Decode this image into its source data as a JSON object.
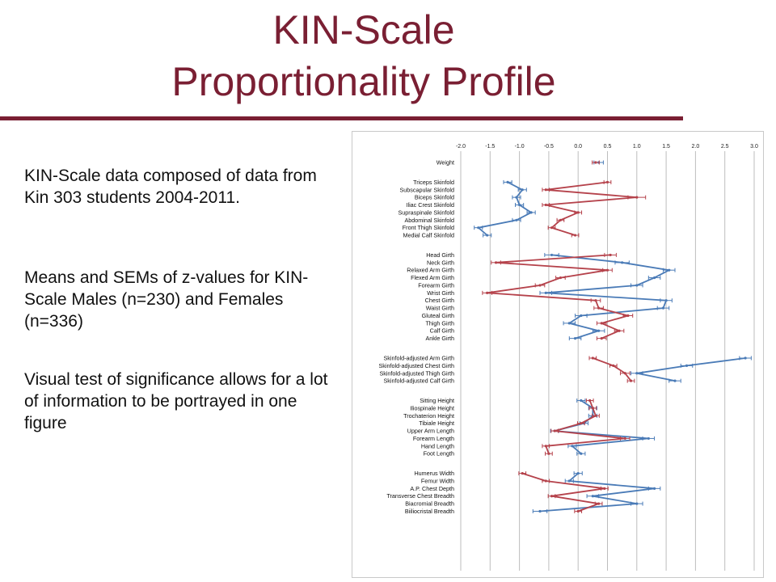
{
  "slide": {
    "title_line1": "KIN-Scale",
    "title_line2": "Proportionality Profile",
    "paragraph1": "KIN-Scale data composed of data from Kin 303 students 2004-2011.",
    "paragraph2": "Means and SEMs of z-values for KIN-Scale Males (n=230) and Females (n=336)",
    "paragraph3": "Visual test of significance allows for a lot of information to be portrayed in one figure",
    "title_color": "#7a1f33"
  },
  "chart_data": {
    "type": "line",
    "orientation": "horizontal",
    "title": "",
    "xlabel": "",
    "ylabel": "",
    "xlim": [
      -2.0,
      3.0
    ],
    "xticks": [
      "-2.0",
      "-1.5",
      "-1.0",
      "-0.5",
      "0.0",
      "0.5",
      "1.0",
      "1.5",
      "2.0",
      "2.5",
      "3.0"
    ],
    "grid": true,
    "legend": "none",
    "groups": [
      [
        "Weight"
      ],
      [
        "Triceps Skinfold",
        "Subscapular Skinfold",
        "Biceps Skinfold",
        "Iliac Crest Skinfold",
        "Supraspinale Skinfold",
        "Abdominal Skinfold",
        "Front Thigh Skinfold",
        "Medial Calf Skinfold"
      ],
      [
        "Head Girth",
        "Neck Girth",
        "Relaxed Arm Girth",
        "Flexed Arm Girth",
        "Forearm Girth",
        "Wrist Girth",
        "Chest Girth",
        "Waist Girth",
        "Gluteal Girth",
        "Thigh Girth",
        "Calf Girth",
        "Ankle Girth"
      ],
      [
        "Skinfold-adjusted Arm Girth",
        "Skinfold-adjusted Chest Girth",
        "Skinfold-adjusted Thigh Girth",
        "Skinfold-adjusted Calf Girth"
      ],
      [
        "Sitting Height",
        "Iliospinale Height",
        "Trochaterion Height",
        "Tibiale Height",
        "Upper Arm Length",
        "Forearm Length",
        "Hand Length",
        "Foot Length"
      ],
      [
        "Humerus Width",
        "Femur Width",
        "A.P. Chest Depth",
        "Transverse Chest Breadth",
        "Biacromial Breadth",
        "Biiliocristal Breadth"
      ]
    ],
    "series": [
      {
        "color": "#4a7bb7",
        "values": [
          [
            0.35
          ],
          [
            -1.2,
            -0.95,
            -1.05,
            -1.0,
            -0.8,
            -1.05,
            -1.7,
            -1.55
          ],
          [
            -0.45,
            0.75,
            1.55,
            1.3,
            1.0,
            -0.55,
            1.5,
            1.45,
            0.05,
            -0.15,
            0.35,
            -0.05
          ],
          [
            2.85,
            1.85,
            1.0,
            1.65
          ],
          [
            0.05,
            0.25,
            0.25,
            0.1,
            -0.4,
            1.2,
            -0.1,
            0.05
          ],
          [
            0.0,
            -0.15,
            1.3,
            0.25,
            1.0,
            -0.65
          ]
        ],
        "errors": [
          [
            0.08
          ],
          [
            0.07,
            0.07,
            0.07,
            0.07,
            0.07,
            0.07,
            0.07,
            0.07
          ],
          [
            0.12,
            0.12,
            0.1,
            0.1,
            0.1,
            0.1,
            0.1,
            0.1,
            0.1,
            0.1,
            0.1,
            0.1
          ],
          [
            0.1,
            0.1,
            0.1,
            0.1
          ],
          [
            0.07,
            0.07,
            0.07,
            0.07,
            0.07,
            0.1,
            0.07,
            0.07
          ],
          [
            0.07,
            0.07,
            0.1,
            0.1,
            0.1,
            0.12
          ]
        ]
      },
      {
        "color": "#b5424b",
        "values": [
          [
            0.3
          ],
          [
            0.5,
            -0.55,
            1.0,
            -0.55,
            0.0,
            -0.3,
            -0.45,
            -0.05
          ],
          [
            0.55,
            -1.4,
            0.5,
            -0.3,
            -0.65,
            -1.55,
            0.3,
            0.35,
            0.85,
            0.4,
            0.7,
            0.4
          ],
          [
            0.25,
            0.6,
            0.8,
            0.9
          ],
          [
            0.2,
            0.25,
            0.3,
            0.05,
            -0.4,
            0.8,
            -0.55,
            -0.5
          ],
          [
            -0.95,
            -0.55,
            0.45,
            -0.45,
            0.35,
            0.0
          ]
        ],
        "errors": [
          [
            0.06
          ],
          [
            0.06,
            0.06,
            0.15,
            0.06,
            0.06,
            0.06,
            0.06,
            0.06
          ],
          [
            0.1,
            0.08,
            0.08,
            0.08,
            0.08,
            0.08,
            0.08,
            0.08,
            0.08,
            0.08,
            0.08,
            0.08
          ],
          [
            0.06,
            0.06,
            0.08,
            0.06
          ],
          [
            0.06,
            0.06,
            0.06,
            0.06,
            0.06,
            0.08,
            0.06,
            0.06
          ],
          [
            0.06,
            0.06,
            0.06,
            0.06,
            0.06,
            0.06
          ]
        ]
      }
    ]
  }
}
